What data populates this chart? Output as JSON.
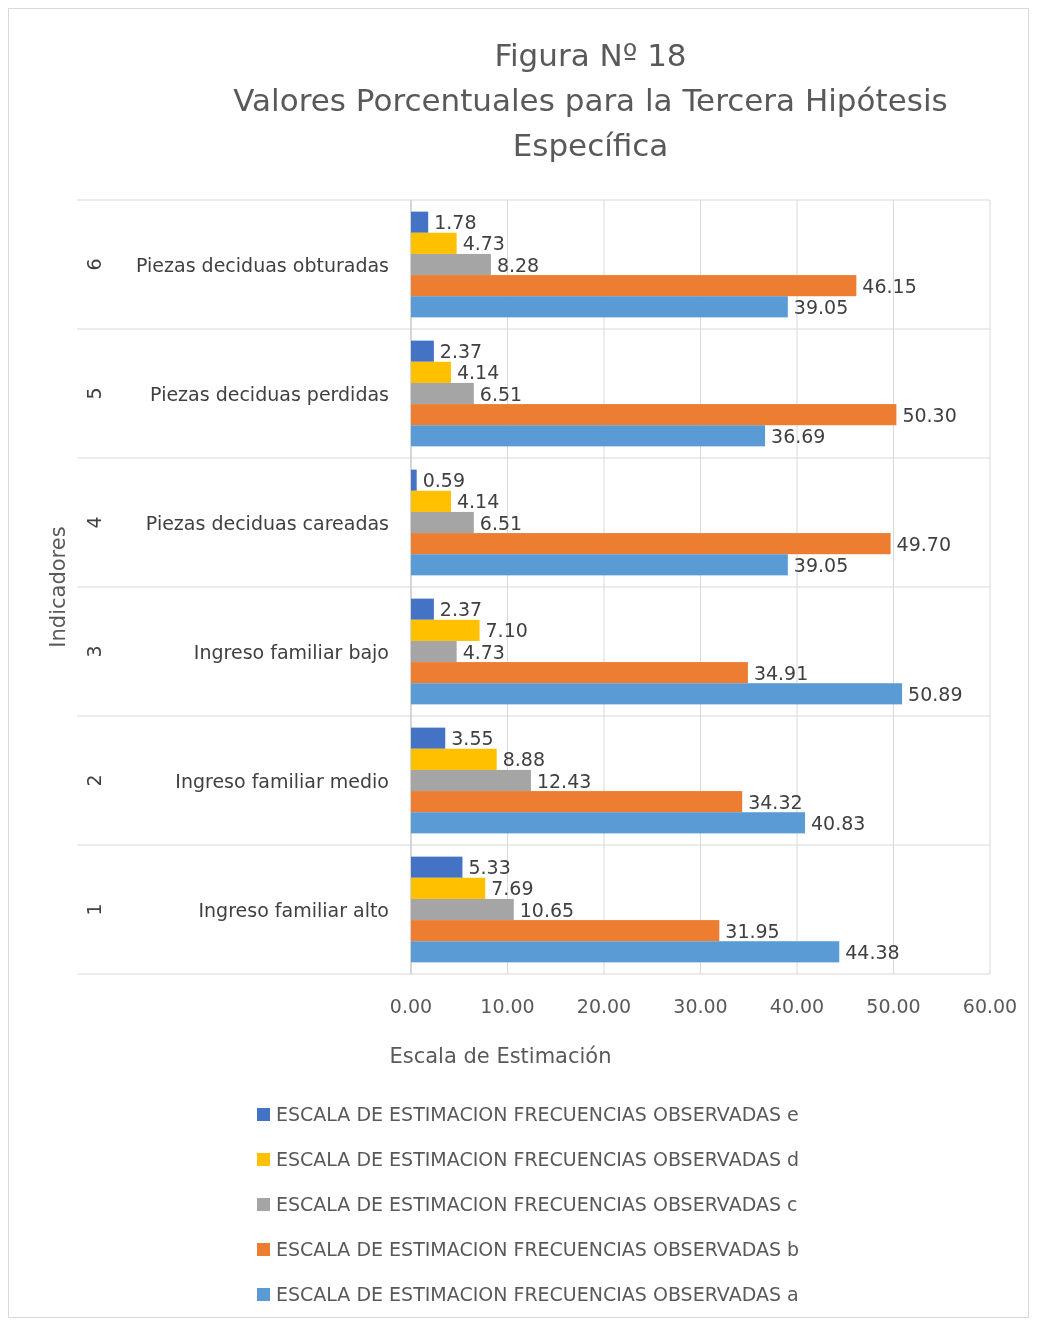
{
  "chart_data": {
    "type": "bar",
    "orientation": "horizontal",
    "title": "Figura Nº 18",
    "subtitle": "Valores Porcentuales para la Tercera Hipótesis Específica",
    "xlabel": "Escala de Estimación",
    "ylabel": "Indicadores",
    "categories": [
      "Piezas deciduas obturadas",
      "Piezas deciduas perdidas",
      "Piezas deciduas careadas",
      "Ingreso familiar bajo",
      "Ingreso familiar medio",
      "Ingreso familiar alto"
    ],
    "annotations": [
      "6",
      "5",
      "4",
      "3",
      "2",
      "1"
    ],
    "series": [
      {
        "name": "ESCALA DE ESTIMACION FRECUENCIAS OBSERVADAS e",
        "color": "#4472c4",
        "values": [
          1.78,
          2.37,
          0.59,
          2.37,
          3.55,
          5.33
        ],
        "value_labels": [
          "1.78",
          "2.37",
          "0.59",
          "2.37",
          "3.55",
          "5.33"
        ]
      },
      {
        "name": "ESCALA DE ESTIMACION FRECUENCIAS OBSERVADAS d",
        "color": "#ffc000",
        "values": [
          4.73,
          4.14,
          4.14,
          7.1,
          8.88,
          7.69
        ],
        "value_labels": [
          "4.73",
          "4.14",
          "4.14",
          "7.10",
          "8.88",
          "7.69"
        ]
      },
      {
        "name": "ESCALA DE ESTIMACION FRECUENCIAS OBSERVADAS c",
        "color": "#a5a5a5",
        "values": [
          8.28,
          6.51,
          6.51,
          4.73,
          12.43,
          10.65
        ],
        "value_labels": [
          "8.28",
          "6.51",
          "6.51",
          "4.73",
          "12.43",
          "10.65"
        ]
      },
      {
        "name": "ESCALA DE ESTIMACION FRECUENCIAS OBSERVADAS b",
        "color": "#ed7d31",
        "values": [
          46.15,
          50.3,
          49.7,
          34.91,
          34.32,
          31.95
        ],
        "value_labels": [
          "46.15",
          "50.30",
          "49.70",
          "34.91",
          "34.32",
          "31.95"
        ]
      },
      {
        "name": "ESCALA DE ESTIMACION FRECUENCIAS OBSERVADAS a",
        "color": "#5b9bd5",
        "values": [
          39.05,
          36.69,
          39.05,
          50.89,
          40.83,
          44.38
        ],
        "value_labels": [
          "39.05",
          "36.69",
          "39.05",
          "50.89",
          "40.83",
          "44.38"
        ]
      }
    ],
    "xlim": [
      0,
      60
    ],
    "xticks": [
      {
        "value": 0,
        "label": "0.00"
      },
      {
        "value": 10,
        "label": "10.00"
      },
      {
        "value": 20,
        "label": "20.00"
      },
      {
        "value": 30,
        "label": "30.00"
      },
      {
        "value": 40,
        "label": "40.00"
      },
      {
        "value": 50,
        "label": "50.00"
      },
      {
        "value": 60,
        "label": "60.00"
      }
    ],
    "grid": true,
    "legend": "bottom"
  }
}
